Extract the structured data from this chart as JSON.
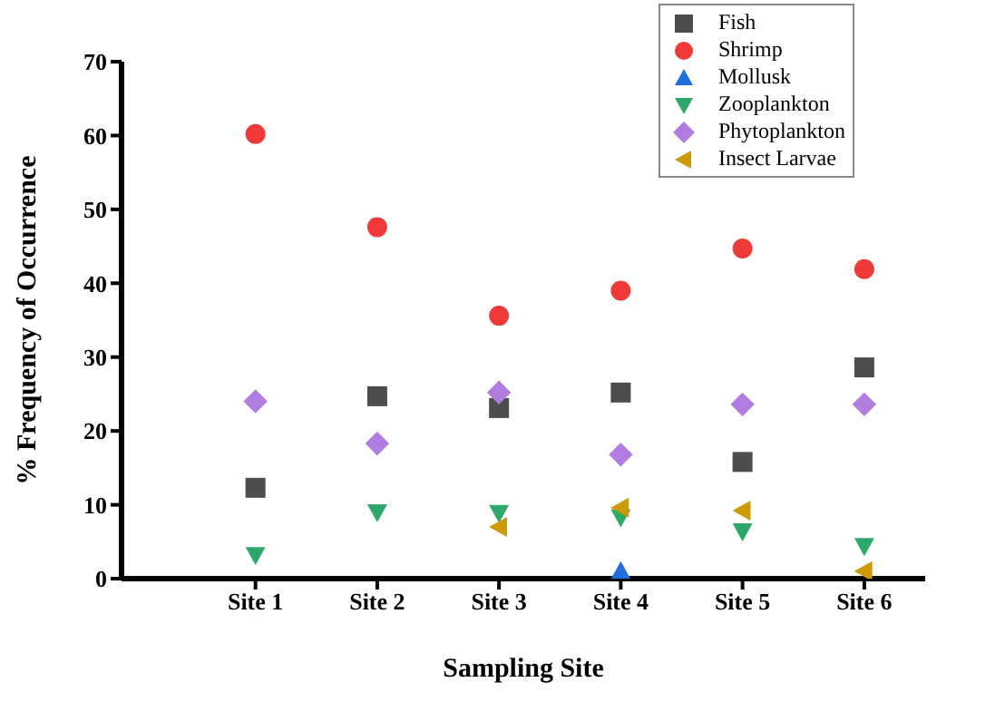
{
  "chart_data": {
    "type": "scatter",
    "xlabel": "Sampling Site",
    "ylabel": "% Frequency of Occurrence",
    "categories": [
      "Site 1",
      "Site 2",
      "Site 3",
      "Site 4",
      "Site 5",
      "Site 6"
    ],
    "ylim": [
      0,
      70
    ],
    "yticks": [
      0,
      10,
      20,
      30,
      40,
      50,
      60,
      70
    ],
    "grid": false,
    "legend": "top right",
    "series": [
      {
        "name": "Fish",
        "color": "#4d4d4d",
        "marker": "square",
        "values": [
          12.3,
          24.7,
          23.1,
          25.2,
          15.8,
          28.6
        ]
      },
      {
        "name": "Shrimp",
        "color": "#f03a3a",
        "marker": "circle",
        "values": [
          60.2,
          47.6,
          35.6,
          39.0,
          44.7,
          41.9
        ]
      },
      {
        "name": "Mollusk",
        "color": "#1f6fe0",
        "marker": "triangle",
        "values": [
          null,
          null,
          null,
          1.0,
          null,
          null
        ]
      },
      {
        "name": "Zooplankton",
        "color": "#2ea86a",
        "marker": "triangle-down",
        "values": [
          3.2,
          9.0,
          8.9,
          8.3,
          6.4,
          4.4
        ]
      },
      {
        "name": "Phytoplankton",
        "color": "#b07ce0",
        "marker": "diamond",
        "values": [
          24.0,
          18.3,
          25.2,
          16.8,
          23.6,
          23.6
        ]
      },
      {
        "name": "Insect Larvae",
        "color": "#cc9a06",
        "marker": "triangle-left",
        "values": [
          null,
          null,
          7.0,
          9.6,
          9.2,
          1.0
        ]
      }
    ]
  }
}
